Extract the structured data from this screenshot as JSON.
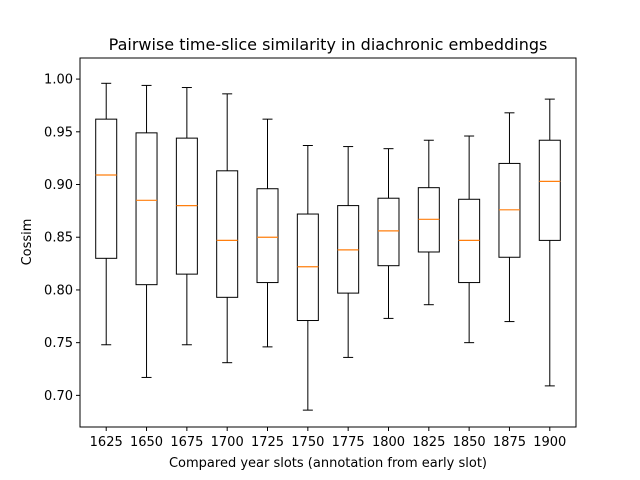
{
  "chart_data": {
    "type": "boxplot",
    "title": "Pairwise time-slice similarity in diachronic embeddings",
    "xlabel": "Compared year slots (annotation from early slot)",
    "ylabel": "Cossim",
    "ylim": [
      0.67,
      1.02
    ],
    "yticks": [
      "0.70",
      "0.75",
      "0.80",
      "0.85",
      "0.90",
      "0.95",
      "1.00"
    ],
    "ytick_values": [
      0.7,
      0.75,
      0.8,
      0.85,
      0.9,
      0.95,
      1.0
    ],
    "grid": false,
    "categories": [
      "1625",
      "1650",
      "1675",
      "1700",
      "1725",
      "1750",
      "1775",
      "1800",
      "1825",
      "1850",
      "1875",
      "1900"
    ],
    "boxes": [
      {
        "label": "1625",
        "whislo": 0.748,
        "q1": 0.83,
        "med": 0.909,
        "q3": 0.962,
        "whishi": 0.996
      },
      {
        "label": "1650",
        "whislo": 0.717,
        "q1": 0.805,
        "med": 0.885,
        "q3": 0.949,
        "whishi": 0.994
      },
      {
        "label": "1675",
        "whislo": 0.748,
        "q1": 0.815,
        "med": 0.88,
        "q3": 0.944,
        "whishi": 0.992
      },
      {
        "label": "1700",
        "whislo": 0.731,
        "q1": 0.793,
        "med": 0.847,
        "q3": 0.913,
        "whishi": 0.986
      },
      {
        "label": "1725",
        "whislo": 0.746,
        "q1": 0.807,
        "med": 0.85,
        "q3": 0.896,
        "whishi": 0.962
      },
      {
        "label": "1750",
        "whislo": 0.686,
        "q1": 0.771,
        "med": 0.822,
        "q3": 0.872,
        "whishi": 0.937
      },
      {
        "label": "1775",
        "whislo": 0.736,
        "q1": 0.797,
        "med": 0.838,
        "q3": 0.88,
        "whishi": 0.936
      },
      {
        "label": "1800",
        "whislo": 0.773,
        "q1": 0.823,
        "med": 0.856,
        "q3": 0.887,
        "whishi": 0.934
      },
      {
        "label": "1825",
        "whislo": 0.786,
        "q1": 0.836,
        "med": 0.867,
        "q3": 0.897,
        "whishi": 0.942
      },
      {
        "label": "1850",
        "whislo": 0.75,
        "q1": 0.807,
        "med": 0.847,
        "q3": 0.886,
        "whishi": 0.946
      },
      {
        "label": "1875",
        "whislo": 0.77,
        "q1": 0.831,
        "med": 0.876,
        "q3": 0.92,
        "whishi": 0.968
      },
      {
        "label": "1900",
        "whislo": 0.709,
        "q1": 0.847,
        "med": 0.903,
        "q3": 0.942,
        "whishi": 0.981
      }
    ],
    "colors": {
      "box": "#000000",
      "median": "#ff7f0e",
      "axes": "#000000"
    }
  }
}
